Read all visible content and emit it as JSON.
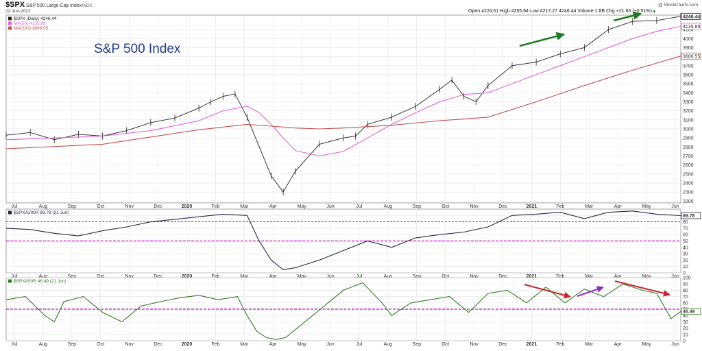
{
  "header": {
    "symbol": "$SPX",
    "name": "S&P 500 Large Cap Index",
    "exchange": "INDX",
    "date": "22-Jun-2021",
    "watermark": "@ StockCharts.com",
    "ohlc": {
      "open_label": "Open",
      "open": "4224.61",
      "high_label": "High",
      "high": "4255.84",
      "low_label": "Low",
      "low": "4217.27",
      "close": "4246.44",
      "volume_label": "Volume",
      "volume": "1.8B",
      "chg_label": "Chg",
      "chg": "+21.65 (+0.51%)",
      "chg_arrow": "▲"
    }
  },
  "x_axis": {
    "labels": [
      "Jul",
      "Aug",
      "Sep",
      "Oct",
      "Nov",
      "Dec",
      "2020",
      "Feb",
      "Mar",
      "Apr",
      "May",
      "Jun",
      "Jul",
      "Aug",
      "Sep",
      "Oct",
      "Nov",
      "Dec",
      "2021",
      "Feb",
      "Mar",
      "Apr",
      "May",
      "Jun"
    ],
    "bold": [
      "2020",
      "2021"
    ]
  },
  "colors": {
    "price": "#222222",
    "ma50": "#e060e0",
    "ma200": "#c0504d",
    "breadth200": "#22264a",
    "breadth50": "#2e7d1e",
    "green_arrow": "#1e7a1e",
    "red_arrow": "#c62828",
    "purple_arrow": "#8e2ad0",
    "ref_line": "#d000d0",
    "grid": "#e3e3ea"
  },
  "chart_data": [
    {
      "type": "line",
      "title": "S&P 500 Index",
      "legend": [
        {
          "label": "$SPX (Daily) 4246.44",
          "color": "#222222"
        },
        {
          "label": "MA(50) 4135.89",
          "color": "#e060e0"
        },
        {
          "label": "MA(200) 3806.55",
          "color": "#c0504d"
        }
      ],
      "y_ticks": [
        2200,
        2300,
        2400,
        2500,
        2600,
        2700,
        2800,
        2900,
        3000,
        3100,
        3200,
        3300,
        3400,
        3500,
        3600,
        3700,
        3800,
        3900,
        4000,
        4100
      ],
      "ylim": [
        2180,
        4260
      ],
      "last_value_labels": [
        "4246.44",
        "4135.89",
        "3806.55"
      ],
      "series": [
        {
          "name": "$SPX",
          "x": [
            0,
            10,
            20,
            30,
            40,
            50,
            60,
            70,
            80,
            85,
            90,
            95,
            100,
            110,
            115,
            120,
            130,
            140,
            145,
            150,
            160,
            170,
            180,
            185,
            190,
            195,
            200,
            210,
            220,
            230,
            240,
            250,
            260,
            270,
            280
          ],
          "values": [
            2930,
            2960,
            2880,
            2940,
            2920,
            2980,
            3070,
            3120,
            3230,
            3300,
            3360,
            3386,
            3130,
            2480,
            2300,
            2530,
            2830,
            2900,
            2920,
            3050,
            3130,
            3250,
            3440,
            3540,
            3360,
            3300,
            3480,
            3700,
            3740,
            3830,
            3900,
            4100,
            4190,
            4200,
            4246
          ]
        },
        {
          "name": "MA(50)",
          "x": [
            0,
            20,
            40,
            60,
            80,
            90,
            100,
            105,
            110,
            115,
            120,
            130,
            140,
            150,
            160,
            170,
            180,
            190,
            200,
            210,
            220,
            230,
            240,
            250,
            260,
            270,
            280
          ],
          "values": [
            2880,
            2900,
            2920,
            2980,
            3090,
            3200,
            3250,
            3180,
            3050,
            2900,
            2760,
            2700,
            2750,
            2900,
            3050,
            3180,
            3300,
            3380,
            3400,
            3500,
            3600,
            3700,
            3800,
            3900,
            4000,
            4080,
            4135
          ]
        },
        {
          "name": "MA(200)",
          "x": [
            0,
            40,
            80,
            100,
            110,
            120,
            130,
            140,
            160,
            180,
            200,
            220,
            240,
            260,
            280
          ],
          "values": [
            2780,
            2830,
            2990,
            3050,
            3030,
            3010,
            3000,
            3010,
            3040,
            3090,
            3130,
            3300,
            3480,
            3650,
            3806
          ]
        }
      ]
    },
    {
      "type": "line",
      "legend": [
        {
          "label": "$SPXA200R 89.78 (21 Jun)",
          "color": "#22264a"
        }
      ],
      "y_ticks": [
        0,
        10,
        20,
        30,
        40,
        50,
        60,
        70,
        80,
        90
      ],
      "ylim": [
        0,
        100
      ],
      "ref_lines": [
        80,
        50
      ],
      "last_value_label": "89.78",
      "series": [
        {
          "name": "$SPXA200R",
          "x": [
            0,
            10,
            20,
            30,
            40,
            50,
            60,
            70,
            80,
            90,
            100,
            105,
            110,
            115,
            120,
            130,
            140,
            150,
            160,
            170,
            180,
            190,
            200,
            210,
            220,
            230,
            240,
            250,
            260,
            270,
            280
          ],
          "values": [
            70,
            68,
            62,
            58,
            66,
            72,
            80,
            84,
            88,
            92,
            90,
            50,
            20,
            5,
            8,
            20,
            35,
            50,
            40,
            55,
            60,
            64,
            72,
            90,
            92,
            95,
            85,
            95,
            97,
            92,
            89.78
          ]
        }
      ]
    },
    {
      "type": "line",
      "legend": [
        {
          "label": "$SPXA50R 46.49 (21 Jun)",
          "color": "#2e7d1e"
        }
      ],
      "y_ticks": [
        0,
        10,
        20,
        30,
        40,
        50,
        60,
        70,
        80,
        90,
        100
      ],
      "ylim": [
        0,
        100
      ],
      "ref_lines": [
        50
      ],
      "last_value_label": "46.49",
      "series": [
        {
          "name": "$SPXA50R",
          "x": [
            0,
            8,
            16,
            20,
            24,
            32,
            40,
            48,
            56,
            64,
            72,
            80,
            88,
            96,
            100,
            104,
            108,
            112,
            116,
            124,
            132,
            140,
            148,
            156,
            160,
            168,
            176,
            184,
            192,
            200,
            208,
            216,
            224,
            232,
            240,
            248,
            256,
            264,
            270,
            276,
            280
          ],
          "values": [
            65,
            70,
            40,
            30,
            62,
            70,
            45,
            30,
            55,
            62,
            68,
            72,
            65,
            70,
            40,
            15,
            5,
            2,
            5,
            30,
            55,
            80,
            92,
            60,
            40,
            60,
            65,
            70,
            45,
            75,
            80,
            60,
            85,
            60,
            82,
            70,
            90,
            80,
            75,
            35,
            46.49
          ]
        }
      ]
    }
  ]
}
